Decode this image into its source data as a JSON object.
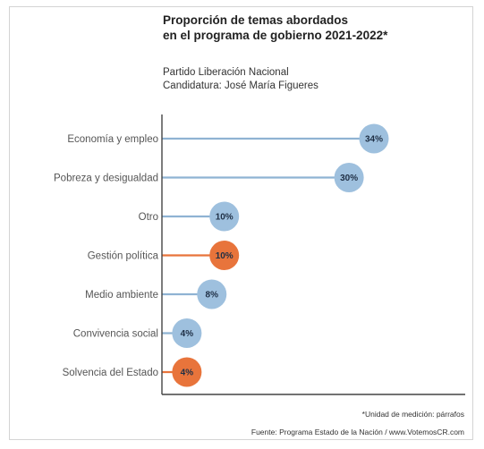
{
  "header": {
    "title_line1": "Proporción de temas abordados",
    "title_line2": "en el programa de gobierno 2021-2022*",
    "party": "Partido Liberación Nacional",
    "candidate": "Candidatura: José María Figueres"
  },
  "footer": {
    "unit_note": "*Unidad de medición: párrafos",
    "source": "Fuente: Programa Estado de la Nación / www.VotemosCR.com"
  },
  "colors": {
    "blue_line": "#8fb3d3",
    "blue_dot": "#9ec0de",
    "orange": "#e8743b",
    "axis": "#444444"
  },
  "chart_data": {
    "type": "bar",
    "style": "lollipop-horizontal",
    "categories": [
      "Economía y empleo",
      "Pobreza y desigualdad",
      "Otro",
      "Gestión política",
      "Medio ambiente",
      "Convivencia social",
      "Solvencia del Estado"
    ],
    "values": [
      34,
      30,
      10,
      10,
      8,
      4,
      4
    ],
    "value_labels": [
      "34%",
      "30%",
      "10%",
      "10%",
      "8%",
      "4%",
      "4%"
    ],
    "highlight": [
      false,
      false,
      false,
      true,
      false,
      false,
      true
    ],
    "xlim": [
      0,
      36
    ],
    "grid": false,
    "legend": "none"
  }
}
